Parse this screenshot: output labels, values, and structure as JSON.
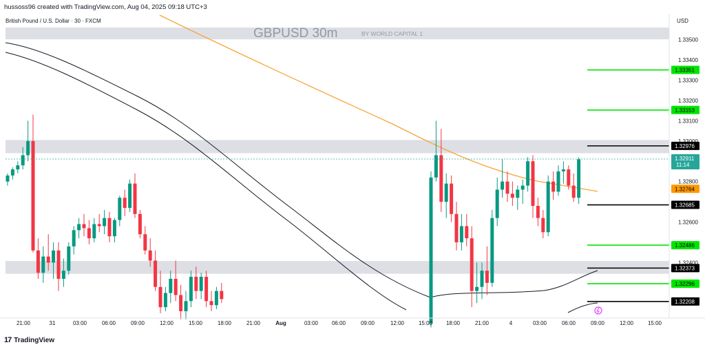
{
  "header": {
    "credit": "hussoss96 created with TradingView.com, Aug 04, 2025 09:18 UTC+3"
  },
  "symbol_info": "British Pound / U.S. Dollar · 30 · FXCM",
  "watermark": {
    "title": "GBPUSD 30m",
    "subtitle": "BY WORLD CAPITAL 1"
  },
  "currency": "USD",
  "footer": {
    "brand": "TradingView",
    "logo_text": "17"
  },
  "colors": {
    "up": "#089981",
    "down": "#f23645",
    "ema_orange": "#f7a535",
    "band_black": "#131722",
    "zone_gray": "#d1d4dc",
    "level_green": "#00e600",
    "level_black": "#000000",
    "price_line": "#26a69a",
    "label_orange": "#ff9800"
  },
  "chart_data": {
    "type": "candlestick",
    "title": "GBPUSD 30m",
    "subtitle": "BY WORLD CAPITAL 1",
    "ylim": [
      1.3215,
      1.3356
    ],
    "y_ticks": [
      "1.33500",
      "1.33400",
      "1.33300",
      "1.33200",
      "1.33100",
      "1.33000",
      "1.32800",
      "1.32600",
      "1.32400"
    ],
    "x_ticks": [
      "21:00",
      "31",
      "03:00",
      "06:00",
      "09:00",
      "12:00",
      "15:00",
      "18:00",
      "21:00",
      "Aug",
      "03:00",
      "06:00",
      "09:00",
      "12:00",
      "15:00",
      "18:00",
      "21:00",
      "4",
      "03:00",
      "06:00",
      "09:00",
      "12:00",
      "15:00"
    ],
    "current_price": {
      "value": 1.32911,
      "label": "1.32911",
      "countdown": "11:14"
    },
    "price_levels": [
      {
        "value": 1.33351,
        "label": "1.33351",
        "style": "green"
      },
      {
        "value": 1.33153,
        "label": "1.33153",
        "style": "green"
      },
      {
        "value": 1.32976,
        "label": "1.32976",
        "style": "black"
      },
      {
        "value": 1.32764,
        "label": "1.32764",
        "style": "orange"
      },
      {
        "value": 1.32685,
        "label": "1.32685",
        "style": "black"
      },
      {
        "value": 1.32486,
        "label": "1.32486",
        "style": "green"
      },
      {
        "value": 1.32373,
        "label": "1.32373",
        "style": "black"
      },
      {
        "value": 1.32296,
        "label": "1.32296",
        "style": "green"
      },
      {
        "value": 1.32208,
        "label": "1.32208",
        "style": "black"
      }
    ],
    "zones": [
      {
        "from": 1.33502,
        "to": 1.3356
      },
      {
        "from": 1.3294,
        "to": 1.33005
      },
      {
        "from": 1.32345,
        "to": 1.32408
      }
    ],
    "candles_session_1": [
      [
        1.328,
        1.3284,
        1.3278,
        1.3283
      ],
      [
        1.3283,
        1.3287,
        1.3281,
        1.3286
      ],
      [
        1.3286,
        1.329,
        1.3284,
        1.3288
      ],
      [
        1.3288,
        1.3297,
        1.3286,
        1.3293
      ],
      [
        1.3293,
        1.331,
        1.329,
        1.33
      ],
      [
        1.33,
        1.3313,
        1.3245,
        1.3246
      ],
      [
        1.3246,
        1.3252,
        1.3232,
        1.3235
      ],
      [
        1.3235,
        1.3248,
        1.323,
        1.3243
      ],
      [
        1.3243,
        1.3254,
        1.3236,
        1.324
      ],
      [
        1.324,
        1.325,
        1.3232,
        1.3246
      ],
      [
        1.3246,
        1.325,
        1.3226,
        1.3232
      ],
      [
        1.3232,
        1.3242,
        1.3228,
        1.3236
      ],
      [
        1.3236,
        1.325,
        1.3234,
        1.3248
      ],
      [
        1.3248,
        1.3258,
        1.3244,
        1.3256
      ],
      [
        1.3256,
        1.3262,
        1.3252,
        1.3259
      ],
      [
        1.3259,
        1.3264,
        1.3253,
        1.3257
      ],
      [
        1.3257,
        1.3261,
        1.3249,
        1.3252
      ],
      [
        1.3252,
        1.3262,
        1.325,
        1.3259
      ],
      [
        1.3259,
        1.3264,
        1.3255,
        1.3258
      ],
      [
        1.3258,
        1.3266,
        1.3254,
        1.3262
      ],
      [
        1.3262,
        1.3265,
        1.325,
        1.3253
      ],
      [
        1.3253,
        1.3262,
        1.325,
        1.3261
      ],
      [
        1.3261,
        1.3273,
        1.3258,
        1.3272
      ],
      [
        1.3272,
        1.3276,
        1.3263,
        1.3267
      ],
      [
        1.3267,
        1.3281,
        1.3265,
        1.3279
      ],
      [
        1.3279,
        1.3284,
        1.3262,
        1.3264
      ],
      [
        1.3264,
        1.3266,
        1.3252,
        1.3254
      ],
      [
        1.3254,
        1.3258,
        1.3244,
        1.3246
      ],
      [
        1.3246,
        1.3252,
        1.3238,
        1.3241
      ],
      [
        1.3241,
        1.3246,
        1.3226,
        1.3228
      ],
      [
        1.3228,
        1.3236,
        1.3215,
        1.3218
      ],
      [
        1.3218,
        1.3228,
        1.3216,
        1.3225
      ],
      [
        1.3225,
        1.3236,
        1.322,
        1.3232
      ],
      [
        1.3232,
        1.3241,
        1.3221,
        1.3224
      ],
      [
        1.3224,
        1.3229,
        1.3212,
        1.3216
      ],
      [
        1.3216,
        1.3226,
        1.3212,
        1.3221
      ],
      [
        1.3221,
        1.3236,
        1.3218,
        1.3233
      ],
      [
        1.3233,
        1.3238,
        1.3222,
        1.3226
      ],
      [
        1.3226,
        1.3235,
        1.3222,
        1.3233
      ],
      [
        1.3233,
        1.3236,
        1.3218,
        1.3221
      ],
      [
        1.3221,
        1.3226,
        1.3216,
        1.3219
      ],
      [
        1.3219,
        1.3228,
        1.3217,
        1.3226
      ],
      [
        1.3226,
        1.323,
        1.322,
        1.3222
      ]
    ],
    "candles_session_2": [
      [
        1.321,
        1.3285,
        1.3208,
        1.3282
      ],
      [
        1.3282,
        1.331,
        1.328,
        1.3293
      ],
      [
        1.3293,
        1.3306,
        1.3265,
        1.327
      ],
      [
        1.327,
        1.3284,
        1.3262,
        1.3279
      ],
      [
        1.3279,
        1.3283,
        1.326,
        1.3264
      ],
      [
        1.3264,
        1.327,
        1.3246,
        1.325
      ],
      [
        1.325,
        1.3264,
        1.3246,
        1.3258
      ],
      [
        1.3258,
        1.3264,
        1.3248,
        1.3252
      ],
      [
        1.3252,
        1.3258,
        1.3218,
        1.3226
      ],
      [
        1.3226,
        1.324,
        1.322,
        1.3228
      ],
      [
        1.3228,
        1.324,
        1.3222,
        1.3236
      ],
      [
        1.3236,
        1.3248,
        1.3224,
        1.323
      ],
      [
        1.323,
        1.3266,
        1.3228,
        1.3262
      ],
      [
        1.3262,
        1.3282,
        1.3258,
        1.3276
      ],
      [
        1.3276,
        1.3291,
        1.3272,
        1.328
      ],
      [
        1.328,
        1.3285,
        1.327,
        1.3274
      ],
      [
        1.3274,
        1.328,
        1.3268,
        1.3272
      ],
      [
        1.3272,
        1.3278,
        1.3266,
        1.3276
      ],
      [
        1.3276,
        1.3281,
        1.3269,
        1.3278
      ],
      [
        1.3278,
        1.3292,
        1.3275,
        1.329
      ],
      [
        1.329,
        1.3293,
        1.3262,
        1.3268
      ],
      [
        1.3268,
        1.3272,
        1.3258,
        1.3262
      ],
      [
        1.3262,
        1.3266,
        1.3252,
        1.3255
      ],
      [
        1.3255,
        1.3283,
        1.3253,
        1.328
      ],
      [
        1.328,
        1.3285,
        1.3271,
        1.3275
      ],
      [
        1.3275,
        1.3288,
        1.3273,
        1.3285
      ],
      [
        1.3285,
        1.329,
        1.3279,
        1.3286
      ],
      [
        1.3286,
        1.3288,
        1.3276,
        1.3278
      ],
      [
        1.3278,
        1.3284,
        1.327,
        1.3272
      ],
      [
        1.3272,
        1.3292,
        1.3269,
        1.3291
      ]
    ],
    "ema_series": {
      "name": "",
      "price_points": [
        [
          1.3368,
          0
        ],
        [
          1.3335,
          0.15
        ],
        [
          1.3315,
          0.35
        ],
        [
          1.33,
          0.55
        ],
        [
          1.3287,
          0.72
        ],
        [
          1.328,
          0.85
        ],
        [
          1.3276,
          1.0
        ]
      ]
    }
  }
}
